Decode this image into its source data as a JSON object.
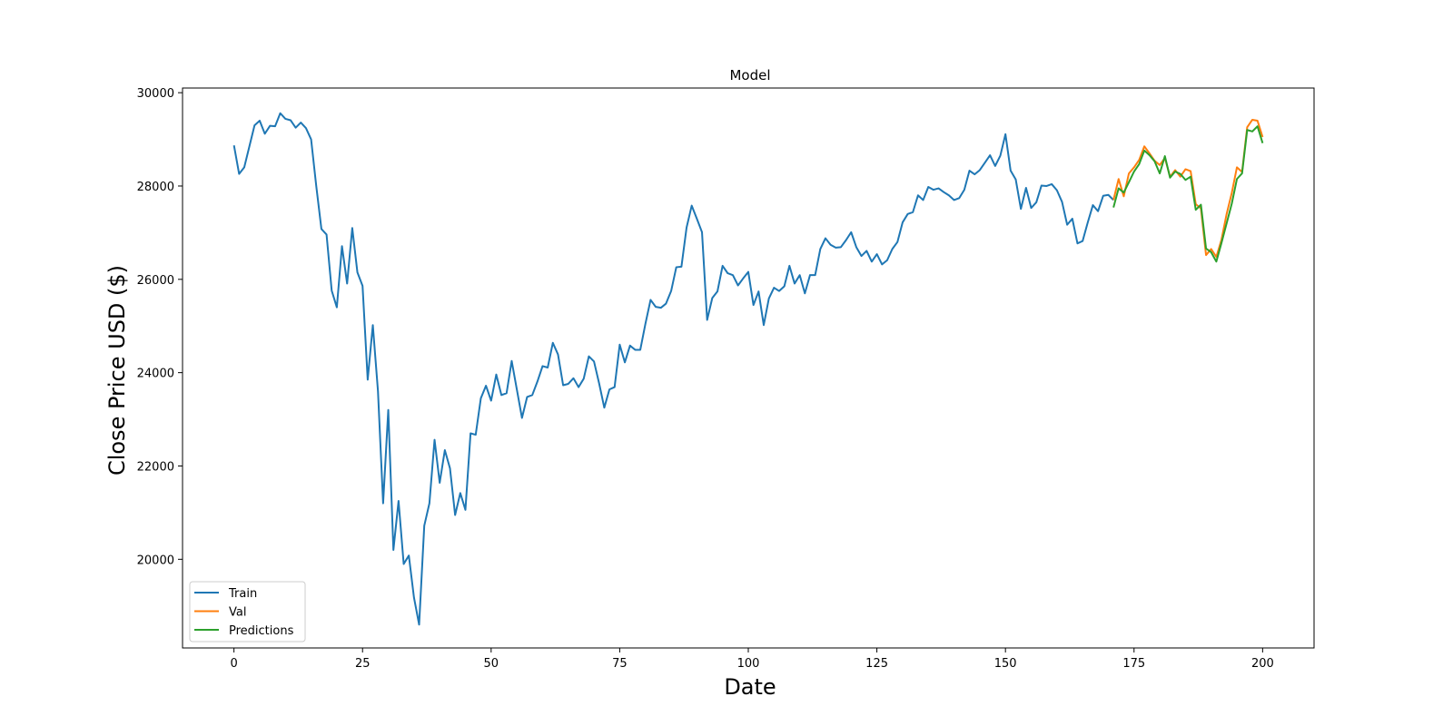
{
  "chart_data": {
    "type": "line",
    "title": "Model",
    "xlabel": "Date",
    "ylabel": "Close Price USD ($)",
    "xlim": [
      -10,
      210
    ],
    "ylim": [
      18100,
      30100
    ],
    "xticks": [
      0,
      25,
      50,
      75,
      100,
      125,
      150,
      175,
      200
    ],
    "yticks": [
      20000,
      22000,
      24000,
      26000,
      28000,
      30000
    ],
    "grid": false,
    "legend_position": "lower left",
    "series": [
      {
        "name": "Train",
        "color": "#1f77b4",
        "x_start": 0,
        "values": [
          28870,
          28260,
          28400,
          28850,
          29300,
          29400,
          29120,
          29290,
          29280,
          29560,
          29440,
          29410,
          29250,
          29360,
          29240,
          29000,
          28000,
          27080,
          26960,
          25760,
          25400,
          26710,
          25910,
          27100,
          26150,
          25860,
          23850,
          25020,
          23600,
          21200,
          23200,
          20200,
          21250,
          19900,
          20080,
          19180,
          18600,
          20720,
          21200,
          22560,
          21640,
          22340,
          21950,
          20950,
          21420,
          21060,
          22700,
          22670,
          23450,
          23720,
          23400,
          23960,
          23520,
          23560,
          24250,
          23640,
          23030,
          23480,
          23520,
          23810,
          24140,
          24110,
          24640,
          24390,
          23730,
          23760,
          23880,
          23690,
          23870,
          24350,
          24240,
          23770,
          23250,
          23640,
          23690,
          24600,
          24220,
          24580,
          24490,
          24490,
          25050,
          25560,
          25410,
          25390,
          25480,
          25750,
          26260,
          26270,
          27110,
          27580,
          27300,
          27010,
          25130,
          25600,
          25740,
          26290,
          26130,
          26090,
          25870,
          26020,
          26160,
          25450,
          25740,
          25020,
          25590,
          25820,
          25750,
          25850,
          26290,
          25910,
          26090,
          25700,
          26090,
          26090,
          26650,
          26880,
          26740,
          26680,
          26690,
          26840,
          27010,
          26690,
          26500,
          26610,
          26380,
          26540,
          26320,
          26410,
          26650,
          26800,
          27220,
          27400,
          27440,
          27800,
          27700,
          27980,
          27920,
          27950,
          27870,
          27800,
          27700,
          27740,
          27920,
          28330,
          28250,
          28340,
          28500,
          28660,
          28430,
          28650,
          29110,
          28330,
          28140,
          27510,
          27960,
          27530,
          27650,
          28010,
          28000,
          28040,
          27910,
          27660,
          27170,
          27300,
          26770,
          26820,
          27220,
          27590,
          27460,
          27790,
          27810,
          27700
        ]
      },
      {
        "name": "Val",
        "color": "#ff7f0e",
        "x_start": 171,
        "values": [
          27700,
          28150,
          27780,
          28270,
          28400,
          28560,
          28850,
          28700,
          28540,
          28450,
          28600,
          28200,
          28340,
          28200,
          28360,
          28320,
          27610,
          27520,
          26520,
          26650,
          26480,
          26850,
          27400,
          27850,
          28400,
          28300,
          29260,
          29420,
          29400,
          29050
        ]
      },
      {
        "name": "Predictions",
        "color": "#2ca02c",
        "x_start": 171,
        "values": [
          27540,
          27950,
          27860,
          28080,
          28310,
          28470,
          28760,
          28660,
          28530,
          28270,
          28640,
          28180,
          28310,
          28260,
          28130,
          28200,
          27490,
          27600,
          26660,
          26580,
          26380,
          26780,
          27200,
          27620,
          28150,
          28270,
          29200,
          29170,
          29280,
          28920
        ]
      }
    ]
  }
}
